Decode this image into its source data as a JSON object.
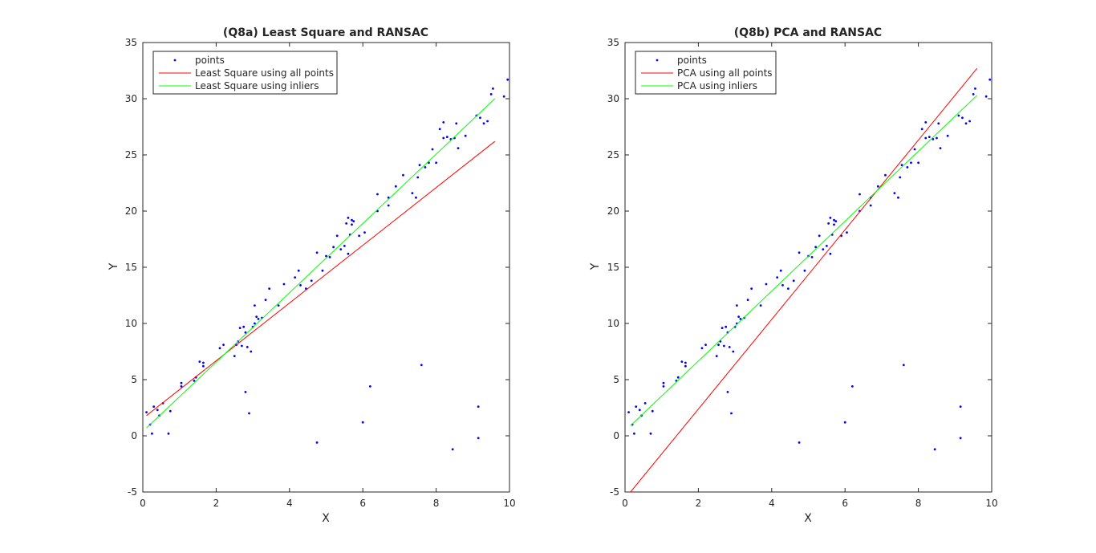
{
  "chart_data": [
    {
      "type": "scatter",
      "title": "(Q8a) Least Square and RANSAC",
      "xlabel": "X",
      "ylabel": "Y",
      "xlim": [
        0,
        10
      ],
      "ylim": [
        -5,
        35
      ],
      "xticks": [
        0,
        2,
        4,
        6,
        8,
        10
      ],
      "yticks": [
        -5,
        0,
        5,
        10,
        15,
        20,
        25,
        30,
        35
      ],
      "grid": false,
      "legend_position": "top-left",
      "series": [
        {
          "name": "points",
          "kind": "markers",
          "color": "#0000ff"
        },
        {
          "name": "Least Square using all points",
          "kind": "line",
          "color": "#ff0000",
          "x": [
            0.1,
            9.6
          ],
          "y": [
            1.8,
            26.2
          ]
        },
        {
          "name": "Least Square using inliers",
          "kind": "line",
          "color": "#00ff00",
          "x": [
            0.1,
            9.6
          ],
          "y": [
            0.7,
            30.0
          ]
        }
      ]
    },
    {
      "type": "scatter",
      "title": "(Q8b) PCA and RANSAC",
      "xlabel": "X",
      "ylabel": "Y",
      "xlim": [
        0,
        10
      ],
      "ylim": [
        -5,
        35
      ],
      "xticks": [
        0,
        2,
        4,
        6,
        8,
        10
      ],
      "yticks": [
        -5,
        0,
        5,
        10,
        15,
        20,
        25,
        30,
        35
      ],
      "grid": false,
      "legend_position": "top-left",
      "series": [
        {
          "name": "points",
          "kind": "markers",
          "color": "#0000ff"
        },
        {
          "name": "PCA using all points",
          "kind": "line",
          "color": "#ff0000",
          "x": [
            0.15,
            9.6
          ],
          "y": [
            -5.0,
            32.7
          ]
        },
        {
          "name": "PCA using inliers",
          "kind": "line",
          "color": "#00ff00",
          "x": [
            0.15,
            9.6
          ],
          "y": [
            0.9,
            30.3
          ]
        }
      ]
    }
  ],
  "points": [
    [
      0.1,
      2.1
    ],
    [
      0.2,
      1.0
    ],
    [
      0.25,
      0.2
    ],
    [
      0.3,
      2.6
    ],
    [
      0.4,
      2.3
    ],
    [
      0.45,
      1.8
    ],
    [
      0.55,
      2.9
    ],
    [
      0.7,
      0.2
    ],
    [
      0.75,
      2.2
    ],
    [
      1.05,
      4.4
    ],
    [
      1.05,
      4.7
    ],
    [
      1.4,
      4.9
    ],
    [
      1.45,
      5.2
    ],
    [
      1.55,
      6.6
    ],
    [
      1.65,
      6.5
    ],
    [
      1.65,
      6.2
    ],
    [
      2.1,
      7.8
    ],
    [
      2.2,
      8.1
    ],
    [
      2.5,
      7.1
    ],
    [
      2.55,
      8.1
    ],
    [
      2.6,
      8.4
    ],
    [
      2.65,
      9.6
    ],
    [
      2.7,
      8.0
    ],
    [
      2.75,
      9.7
    ],
    [
      2.8,
      9.2
    ],
    [
      2.8,
      3.9
    ],
    [
      2.85,
      7.9
    ],
    [
      2.9,
      2.0
    ],
    [
      2.95,
      7.5
    ],
    [
      3.0,
      9.7
    ],
    [
      3.05,
      11.6
    ],
    [
      3.05,
      10.0
    ],
    [
      3.1,
      10.6
    ],
    [
      3.15,
      10.4
    ],
    [
      3.25,
      10.5
    ],
    [
      3.35,
      12.1
    ],
    [
      3.45,
      13.1
    ],
    [
      3.7,
      11.6
    ],
    [
      3.85,
      13.5
    ],
    [
      4.15,
      14.1
    ],
    [
      4.25,
      14.7
    ],
    [
      4.3,
      13.4
    ],
    [
      4.45,
      13.1
    ],
    [
      4.6,
      13.8
    ],
    [
      4.75,
      16.3
    ],
    [
      4.75,
      -0.6
    ],
    [
      4.9,
      14.7
    ],
    [
      5.0,
      16.0
    ],
    [
      5.1,
      15.9
    ],
    [
      5.2,
      16.8
    ],
    [
      5.3,
      17.8
    ],
    [
      5.4,
      16.6
    ],
    [
      5.5,
      16.9
    ],
    [
      5.55,
      18.9
    ],
    [
      5.6,
      19.4
    ],
    [
      5.6,
      16.2
    ],
    [
      5.65,
      17.9
    ],
    [
      5.7,
      18.8
    ],
    [
      5.7,
      19.2
    ],
    [
      5.75,
      19.1
    ],
    [
      5.9,
      17.8
    ],
    [
      6.0,
      1.2
    ],
    [
      6.05,
      18.1
    ],
    [
      6.2,
      4.4
    ],
    [
      6.4,
      21.5
    ],
    [
      6.4,
      20.0
    ],
    [
      6.7,
      20.5
    ],
    [
      6.7,
      21.2
    ],
    [
      6.9,
      22.2
    ],
    [
      7.1,
      23.2
    ],
    [
      7.35,
      21.6
    ],
    [
      7.45,
      21.2
    ],
    [
      7.5,
      23.0
    ],
    [
      7.55,
      24.1
    ],
    [
      7.6,
      6.3
    ],
    [
      7.7,
      23.9
    ],
    [
      7.8,
      24.3
    ],
    [
      7.9,
      25.5
    ],
    [
      8.0,
      24.3
    ],
    [
      8.1,
      27.3
    ],
    [
      8.2,
      27.9
    ],
    [
      8.2,
      26.5
    ],
    [
      8.3,
      26.6
    ],
    [
      8.4,
      26.4
    ],
    [
      8.45,
      -1.2
    ],
    [
      8.5,
      26.5
    ],
    [
      8.55,
      27.8
    ],
    [
      8.6,
      25.6
    ],
    [
      8.8,
      26.7
    ],
    [
      9.1,
      28.5
    ],
    [
      9.15,
      -0.2
    ],
    [
      9.15,
      2.6
    ],
    [
      9.2,
      28.3
    ],
    [
      9.3,
      27.8
    ],
    [
      9.4,
      28.0
    ],
    [
      9.5,
      30.4
    ],
    [
      9.55,
      30.9
    ],
    [
      9.85,
      30.2
    ],
    [
      9.95,
      31.7
    ]
  ]
}
